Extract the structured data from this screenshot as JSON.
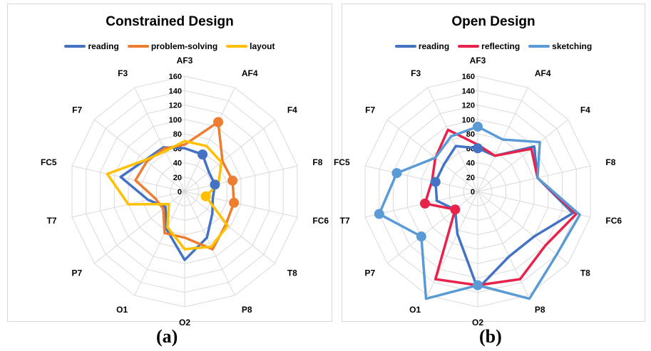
{
  "chart_data": [
    {
      "type": "radar",
      "title": "Constrained Design",
      "categories": [
        "AF3",
        "AF4",
        "F4",
        "F8",
        "FC6",
        "T8",
        "P8",
        "O2",
        "O1",
        "P7",
        "T7",
        "FC5",
        "F7",
        "F3"
      ],
      "rlim": [
        0,
        160
      ],
      "rticks": [
        "0",
        "20",
        "40",
        "60",
        "80",
        "100",
        "120",
        "140",
        "160"
      ],
      "legend_position": "top",
      "grid": true,
      "series": [
        {
          "name": "reading",
          "color": "#4472c4",
          "values": [
            60,
            57,
            43,
            43,
            40,
            49,
            71,
            95,
            58,
            34,
            52,
            91,
            70,
            68
          ],
          "marker_index": 1
        },
        {
          "name": "problem-solving",
          "color": "#ed7d31",
          "values": [
            65,
            107,
            67,
            68,
            70,
            73,
            89,
            64,
            64,
            38,
            42,
            70,
            67,
            66
          ],
          "marker_index": 1
        },
        {
          "name": "layout",
          "color": "#ffc000",
          "values": [
            70,
            70,
            65,
            48,
            30,
            76,
            85,
            80,
            55,
            28,
            80,
            110,
            70,
            62
          ],
          "marker_index": 4
        }
      ],
      "markers": [
        {
          "series": "reading",
          "axis": "AF4",
          "value": 57
        },
        {
          "series": "reading",
          "axis": "F8",
          "value": 43
        },
        {
          "series": "problem-solving",
          "axis": "AF4",
          "value": 107
        },
        {
          "series": "problem-solving",
          "axis": "F8",
          "value": 68
        },
        {
          "series": "problem-solving",
          "axis": "FC6",
          "value": 70
        },
        {
          "series": "layout",
          "axis": "FC6",
          "value": 30
        }
      ]
    },
    {
      "type": "radar",
      "title": "Open Design",
      "categories": [
        "AF3",
        "AF4",
        "F4",
        "F8",
        "FC6",
        "T8",
        "P8",
        "O2",
        "O1",
        "P7",
        "T7",
        "FC5",
        "F7",
        "F3"
      ],
      "rlim": [
        0,
        160
      ],
      "rticks": [
        "0",
        "20",
        "40",
        "60",
        "80",
        "100",
        "120",
        "140",
        "160"
      ],
      "legend_position": "top",
      "grid": true,
      "series": [
        {
          "name": "reading",
          "color": "#4472c4",
          "values": [
            60,
            55,
            100,
            85,
            135,
            100,
            100,
            135,
            65,
            40,
            58,
            60,
            60,
            70
          ]
        },
        {
          "name": "reflecting",
          "color": "#e8234b",
          "values": [
            65,
            55,
            95,
            85,
            140,
            120,
            135,
            130,
            135,
            40,
            75,
            65,
            75,
            95
          ]
        },
        {
          "name": "sketching",
          "color": "#5b9bd5",
          "values": [
            90,
            80,
            110,
            85,
            145,
            140,
            165,
            130,
            165,
            100,
            140,
            115,
            75,
            85
          ]
        }
      ],
      "markers": [
        {
          "series": "reading",
          "axis": "AF3",
          "value": 60
        },
        {
          "series": "reading",
          "axis": "FC5",
          "value": 60
        },
        {
          "series": "reflecting",
          "axis": "T7",
          "value": 75
        },
        {
          "series": "reflecting",
          "axis": "P7",
          "value": 40
        },
        {
          "series": "sketching",
          "axis": "AF3",
          "value": 90
        },
        {
          "series": "sketching",
          "axis": "FC5",
          "value": 115
        },
        {
          "series": "sketching",
          "axis": "T7",
          "value": 140
        },
        {
          "series": "sketching",
          "axis": "P7",
          "value": 100
        },
        {
          "series": "sketching",
          "axis": "O2",
          "value": 130
        }
      ]
    }
  ],
  "captions": {
    "a": "(a)",
    "b": "(b)"
  },
  "colors": {
    "grid": "#d9d9d9",
    "panel_border": "#d9d9d9"
  }
}
